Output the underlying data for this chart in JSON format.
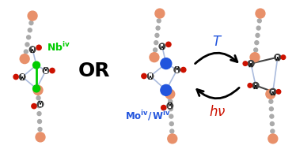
{
  "fig_width": 3.74,
  "fig_height": 1.89,
  "dpi": 100,
  "bg_color": "#ffffff",
  "salmon_color": "#E8906A",
  "blue_chain_color": "#AABBDD",
  "gray_bead_color": "#AAAAAA",
  "green_metal_color": "#00CC00",
  "blue_metal_color": "#2255DD",
  "dark_gray_color": "#444444",
  "red_oxygen_color": "#CC1100",
  "or_text": "OR",
  "or_fontsize": 18,
  "or_fontweight": "bold",
  "nb_color": "#00CC00",
  "mo_color": "#2255DD",
  "T_color": "#2255DD",
  "T_fontsize": 12,
  "hv_color": "#CC1100",
  "hv_fontsize": 12
}
